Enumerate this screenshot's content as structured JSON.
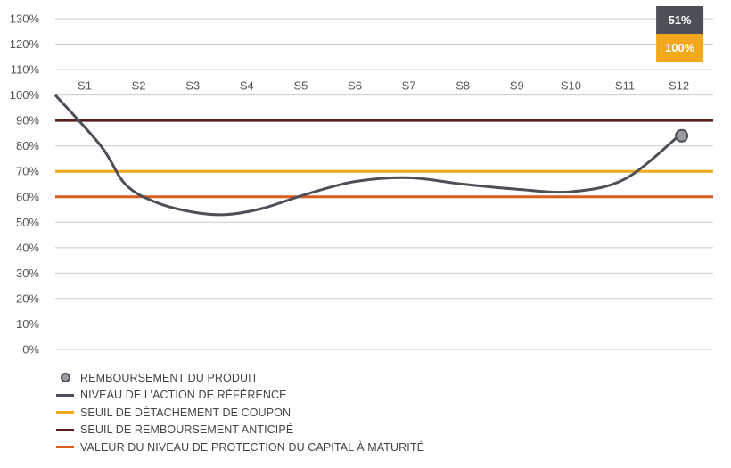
{
  "chart_data": {
    "type": "line",
    "categories": [
      "S1",
      "S2",
      "S3",
      "S4",
      "S5",
      "S6",
      "S7",
      "S8",
      "S9",
      "S10",
      "S11",
      "S12"
    ],
    "y_ticks": [
      "0%",
      "10%",
      "20%",
      "30%",
      "40%",
      "50%",
      "60%",
      "70%",
      "80%",
      "90%",
      "100%",
      "110%",
      "120%",
      "130%"
    ],
    "ylim": [
      0,
      130
    ],
    "grid": true,
    "series": [
      {
        "name": "NIVEAU DE L'ACTION DE RÉFÉRENCE",
        "color": "#4d4f57",
        "x": [
          0,
          0.3,
          0.75,
          1.3,
          2.0,
          2.6,
          3.3,
          4.1,
          5.0,
          6.0,
          7.0,
          8.0,
          9.0,
          10.0,
          11.0
        ],
        "values": [
          100,
          80,
          65,
          58,
          54,
          53,
          55.5,
          61,
          66,
          67.5,
          65,
          63,
          62,
          67,
          84
        ]
      }
    ],
    "reference_lines": [
      {
        "name": "SEUIL DE REMBOURSEMENT ANTICIPÉ",
        "value": 90,
        "color": "#5a1e1e"
      },
      {
        "name": "SEUIL DE DÉTACHEMENT DE COUPON",
        "value": 70,
        "color": "#f2a81d"
      },
      {
        "name": "VALEUR DU NIVEAU DE PROTECTION DU CAPITAL À MATURITÉ",
        "value": 60,
        "color": "#dd5b1c"
      }
    ],
    "marker": {
      "name": "REMBOURSEMENT DU PRODUIT",
      "x": 11,
      "value": 84,
      "color": "#9a9ca3"
    },
    "boxes": [
      {
        "label": "51%",
        "color": "#4d4f57"
      },
      {
        "label": "100%",
        "color": "#f2a81d"
      }
    ]
  },
  "legend": [
    {
      "label": "REMBOURSEMENT DU PRODUIT",
      "kind": "dot",
      "color": "#9a9ca3"
    },
    {
      "label": "NIVEAU DE L’ACTION DE RÉFÉRENCE",
      "kind": "line",
      "color": "#4d4f57"
    },
    {
      "label": "SEUIL DE DÉTACHEMENT DE COUPON",
      "kind": "line",
      "color": "#f2a81d"
    },
    {
      "label": "SEUIL DE REMBOURSEMENT ANTICIPÉ",
      "kind": "line",
      "color": "#5a1e1e"
    },
    {
      "label": "VALEUR DU NIVEAU DE PROTECTION DU CAPITAL À MATURITÉ",
      "kind": "line",
      "color": "#dd5b1c"
    }
  ]
}
